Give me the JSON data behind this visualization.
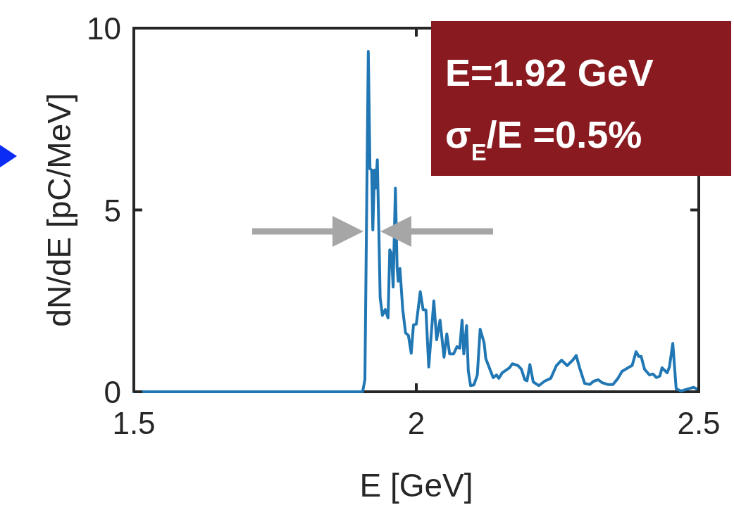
{
  "chart_data": {
    "type": "line",
    "xlabel": "E [GeV]",
    "ylabel": "dN/dE [pC/MeV]",
    "xlim": [
      1.5,
      2.5
    ],
    "ylim": [
      0,
      10
    ],
    "xticks": [
      1.5,
      2,
      2.5
    ],
    "yticks": [
      0,
      5,
      10
    ],
    "grid": false,
    "marker": "none",
    "line_style": "solid",
    "annotations": [
      "E=1.92 GeV",
      "σ$_{E}$/E =0.5%"
    ],
    "series": [
      {
        "color": "#2077b4",
        "x": [
          1.5,
          1.905,
          1.909,
          1.915,
          1.918,
          1.921,
          1.923,
          1.926,
          1.928,
          1.931,
          1.934,
          1.936,
          1.94,
          1.945,
          1.95,
          1.953,
          1.956,
          1.959,
          1.963,
          1.966,
          1.968,
          1.971,
          1.976,
          1.981,
          1.986,
          1.991,
          1.995,
          2.0,
          2.007,
          2.012,
          2.017,
          2.022,
          2.031,
          2.036,
          2.042,
          2.049,
          2.054,
          2.059,
          2.066,
          2.072,
          2.077,
          2.081,
          2.084,
          2.089,
          2.092,
          2.096,
          2.102,
          2.108,
          2.113,
          2.12,
          2.123,
          2.136,
          2.142,
          2.146,
          2.152,
          2.165,
          2.17,
          2.18,
          2.186,
          2.192,
          2.196,
          2.201,
          2.207,
          2.217,
          2.227,
          2.238,
          2.248,
          2.257,
          2.267,
          2.277,
          2.283,
          2.289,
          2.298,
          2.307,
          2.314,
          2.322,
          2.329,
          2.339,
          2.348,
          2.357,
          2.364,
          2.377,
          2.382,
          2.389,
          2.394,
          2.398,
          2.404,
          2.413,
          2.419,
          2.425,
          2.431,
          2.435,
          2.444,
          2.448,
          2.454,
          2.46,
          2.469,
          2.481,
          2.491,
          2.5
        ],
        "values": [
          0,
          0,
          0.33,
          9.36,
          6.13,
          6.1,
          4.45,
          6.1,
          5.6,
          6.38,
          4.2,
          2.59,
          2.1,
          2.26,
          2.03,
          3.9,
          3.8,
          2.88,
          5.6,
          3.42,
          3.04,
          3.39,
          2.26,
          1.62,
          1.55,
          1.06,
          1.84,
          1.86,
          2.75,
          2.26,
          2.25,
          0.68,
          2.5,
          1.43,
          1.97,
          0.95,
          1.59,
          1.04,
          1.04,
          1.24,
          1.2,
          1.97,
          1.04,
          1.82,
          0.58,
          0.17,
          0.19,
          0.46,
          1.72,
          1.35,
          0.91,
          0.39,
          0.46,
          0.37,
          0.52,
          0.66,
          0.77,
          0.72,
          0.62,
          0.33,
          0.3,
          0.75,
          0.27,
          0.17,
          0.29,
          0.37,
          0.72,
          0.87,
          0.72,
          0.87,
          1.0,
          0.66,
          0.23,
          0.2,
          0.29,
          0.33,
          0.25,
          0.2,
          0.2,
          0.37,
          0.56,
          0.68,
          0.72,
          1.1,
          0.97,
          0.97,
          0.62,
          0.46,
          0.49,
          0.39,
          0.43,
          0.66,
          0.52,
          0.68,
          1.33,
          0.08,
          0.02,
          0.08,
          0.12,
          0.05
        ]
      }
    ]
  }
}
